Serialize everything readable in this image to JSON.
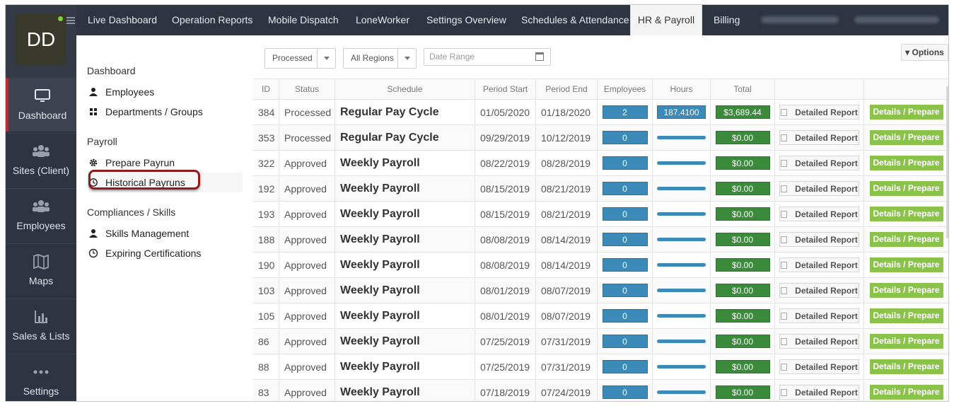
{
  "user": {
    "initials": "DD"
  },
  "sidebar": {
    "items": [
      {
        "label": "Dashboard",
        "icon": "monitor-icon"
      },
      {
        "label": "Sites (Client)",
        "icon": "users-group-icon"
      },
      {
        "label": "Employees",
        "icon": "users-group-icon"
      },
      {
        "label": "Maps",
        "icon": "map-icon"
      },
      {
        "label": "Sales & Lists",
        "icon": "bar-chart-icon"
      },
      {
        "label": "Settings",
        "icon": "dots-icon"
      }
    ]
  },
  "topnav": {
    "tabs": [
      "Live Dashboard",
      "Operation Reports",
      "Mobile Dispatch",
      "LoneWorker",
      "Settings Overview",
      "Schedules & Attendance",
      "HR & Payroll",
      "Billing"
    ]
  },
  "subnav": {
    "section1": "Dashboard",
    "employees": "Employees",
    "departments": "Departments / Groups",
    "section2": "Payroll",
    "prepare": "Prepare Payrun",
    "historical": "Historical Payruns",
    "section3": "Compliances / Skills",
    "skills": "Skills Management",
    "expiring": "Expiring Certifications"
  },
  "filters": {
    "status": "Processed",
    "regions": "All Regions",
    "date_placeholder": "Date Range",
    "options": "Options"
  },
  "table": {
    "headers": [
      "ID",
      "Status",
      "Schedule",
      "Period Start",
      "Period End",
      "Employees",
      "Hours",
      "Total"
    ],
    "report_label": "Detailed Report",
    "prepare_label": "Details / Prepare",
    "rows": [
      {
        "id": "384",
        "status": "Processed",
        "schedule": "Regular Pay Cycle",
        "start": "01/05/2020",
        "end": "01/18/2020",
        "employees": "2",
        "hours": "187.4100",
        "total": "$3,689.44"
      },
      {
        "id": "353",
        "status": "Processed",
        "schedule": "Regular Pay Cycle",
        "start": "09/29/2019",
        "end": "10/12/2019",
        "employees": "0",
        "hours": "",
        "total": "$0.00"
      },
      {
        "id": "322",
        "status": "Approved",
        "schedule": "Weekly Payroll",
        "start": "08/22/2019",
        "end": "08/28/2019",
        "employees": "0",
        "hours": "",
        "total": "$0.00"
      },
      {
        "id": "192",
        "status": "Approved",
        "schedule": "Weekly Payroll",
        "start": "08/15/2019",
        "end": "08/21/2019",
        "employees": "0",
        "hours": "",
        "total": "$0.00"
      },
      {
        "id": "193",
        "status": "Approved",
        "schedule": "Weekly Payroll",
        "start": "08/15/2019",
        "end": "08/21/2019",
        "employees": "0",
        "hours": "",
        "total": "$0.00"
      },
      {
        "id": "188",
        "status": "Approved",
        "schedule": "Weekly Payroll",
        "start": "08/08/2019",
        "end": "08/14/2019",
        "employees": "0",
        "hours": "",
        "total": "$0.00"
      },
      {
        "id": "190",
        "status": "Approved",
        "schedule": "Weekly Payroll",
        "start": "08/08/2019",
        "end": "08/14/2019",
        "employees": "0",
        "hours": "",
        "total": "$0.00"
      },
      {
        "id": "103",
        "status": "Approved",
        "schedule": "Weekly Payroll",
        "start": "08/01/2019",
        "end": "08/07/2019",
        "employees": "0",
        "hours": "",
        "total": "$0.00"
      },
      {
        "id": "105",
        "status": "Approved",
        "schedule": "Weekly Payroll",
        "start": "08/01/2019",
        "end": "08/07/2019",
        "employees": "0",
        "hours": "",
        "total": "$0.00"
      },
      {
        "id": "86",
        "status": "Approved",
        "schedule": "Weekly Payroll",
        "start": "07/25/2019",
        "end": "07/31/2019",
        "employees": "0",
        "hours": "",
        "total": "$0.00"
      },
      {
        "id": "88",
        "status": "Approved",
        "schedule": "Weekly Payroll",
        "start": "07/25/2019",
        "end": "07/31/2019",
        "employees": "0",
        "hours": "",
        "total": "$0.00"
      },
      {
        "id": "83",
        "status": "Approved",
        "schedule": "Weekly Payroll",
        "start": "07/18/2019",
        "end": "07/24/2019",
        "employees": "0",
        "hours": "",
        "total": "$0.00"
      }
    ]
  },
  "colors": {
    "sidebar_bg": "#2e3440",
    "accent_red": "#c0282e",
    "badge_blue": "#3c8ab8",
    "total_green": "#3c8a3c",
    "prepare_green": "#8bc24a"
  }
}
